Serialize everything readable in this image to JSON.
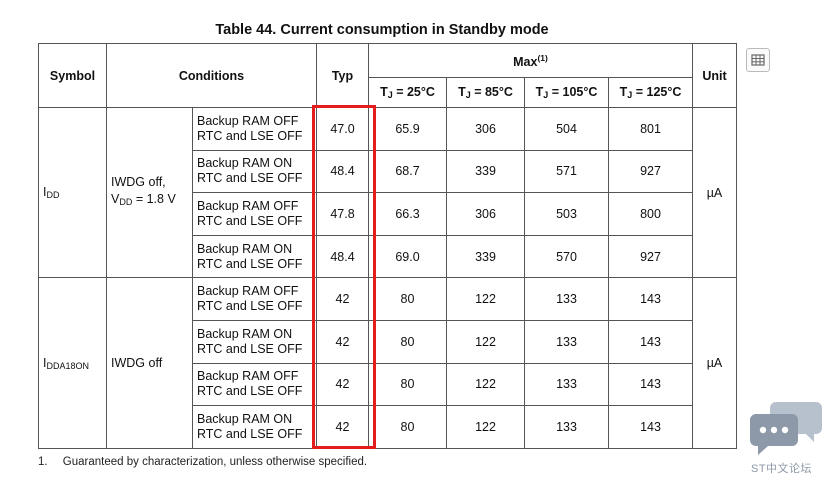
{
  "table": {
    "caption": "Table 44. Current consumption in Standby mode",
    "headers": {
      "symbol": "Symbol",
      "conditions": "Conditions",
      "typ": "Typ",
      "max": "Max",
      "max_note": "(1)",
      "unit": "Unit",
      "tj_label": "T",
      "tj_sub": "J",
      "tj_values": [
        " = 25°C",
        " = 85°C",
        " = 105°C",
        " = 125°C"
      ]
    },
    "groups": [
      {
        "symbol_main": "I",
        "symbol_sub": "DD",
        "cond1_line1": "IWDG off,",
        "cond1_line2_main": "V",
        "cond1_line2_sub": "DD",
        "cond1_line2_rest": " = 1.8 V",
        "unit": "µA",
        "rows": [
          {
            "cond_a": "Backup RAM OFF",
            "cond_b": "RTC and LSE OFF",
            "typ": "47.0",
            "max": [
              "65.9",
              "306",
              "504",
              "801"
            ]
          },
          {
            "cond_a": "Backup RAM ON",
            "cond_b": "RTC and LSE OFF",
            "typ": "48.4",
            "max": [
              "68.7",
              "339",
              "571",
              "927"
            ]
          },
          {
            "cond_a": "Backup RAM OFF",
            "cond_b": "RTC and LSE OFF",
            "typ": "47.8",
            "max": [
              "66.3",
              "306",
              "503",
              "800"
            ]
          },
          {
            "cond_a": "Backup RAM ON",
            "cond_b": "RTC and LSE OFF",
            "typ": "48.4",
            "max": [
              "69.0",
              "339",
              "570",
              "927"
            ]
          }
        ]
      },
      {
        "symbol_main": "I",
        "symbol_sub": "DDA18ON",
        "cond1_line1": "IWDG off",
        "unit": "µA",
        "rows": [
          {
            "cond_a": "Backup RAM OFF",
            "cond_b": "RTC and LSE OFF",
            "typ": "42",
            "max": [
              "80",
              "122",
              "133",
              "143"
            ]
          },
          {
            "cond_a": "Backup RAM ON",
            "cond_b": "RTC and LSE OFF",
            "typ": "42",
            "max": [
              "80",
              "122",
              "133",
              "143"
            ]
          },
          {
            "cond_a": "Backup RAM OFF",
            "cond_b": "RTC and LSE OFF",
            "typ": "42",
            "max": [
              "80",
              "122",
              "133",
              "143"
            ]
          },
          {
            "cond_a": "Backup RAM ON",
            "cond_b": "RTC and LSE OFF",
            "typ": "42",
            "max": [
              "80",
              "122",
              "133",
              "143"
            ]
          }
        ]
      }
    ]
  },
  "footnote": {
    "number": "1.",
    "text": "Guaranteed by characterization, unless otherwise specified."
  },
  "watermark": {
    "text": "ST中文论坛",
    "icon": "chat-bubbles-icon"
  },
  "toolbar": {
    "icon": "table-extract-icon"
  },
  "colors": {
    "highlight_border": "#e41c1c",
    "grid": "#555555",
    "watermark": "#8d98a8"
  }
}
